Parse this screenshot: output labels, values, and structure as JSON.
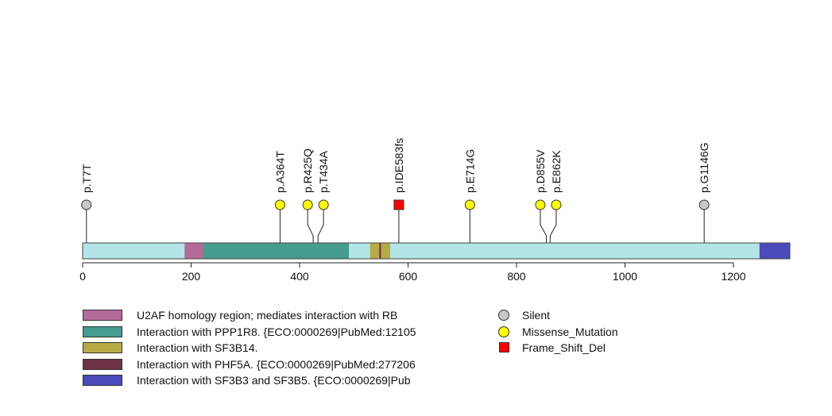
{
  "chart_data": {
    "type": "lollipop",
    "protein_length": 1304,
    "xlim": [
      0,
      1304
    ],
    "x_ticks": [
      0,
      200,
      400,
      600,
      800,
      1000,
      1200
    ],
    "backbone_color": "#b3e5e8",
    "domains": [
      {
        "name": "U2AF homology region; mediates interaction with RB",
        "start": 188,
        "end": 222,
        "color": "#b36b99"
      },
      {
        "name": "Interaction with PPP1R8. {ECO:0000269|PubMed:12105",
        "start": 222,
        "end": 491,
        "color": "#459c8f"
      },
      {
        "name": "Interaction with SF3B14.",
        "start": 530,
        "end": 567,
        "color": "#b8aa45"
      },
      {
        "name": "Interaction with PHF5A. {ECO:0000269|PubMed:277206",
        "start": 547,
        "end": 550,
        "color": "#6b3345"
      },
      {
        "name": "Interaction with SF3B3 and SF3B5. {ECO:0000269|Pub",
        "start": 1248,
        "end": 1304,
        "color": "#4a4abb"
      }
    ],
    "mutations": [
      {
        "label": "p.T7T",
        "position": 7,
        "type": "Silent"
      },
      {
        "label": "p.A364T",
        "position": 364,
        "type": "Missense_Mutation"
      },
      {
        "label": "p.R425Q",
        "position": 425,
        "type": "Missense_Mutation"
      },
      {
        "label": "p.T434A",
        "position": 434,
        "type": "Missense_Mutation"
      },
      {
        "label": "p.IDE583fs",
        "position": 583,
        "type": "Frame_Shift_Del"
      },
      {
        "label": "p.E714G",
        "position": 714,
        "type": "Missense_Mutation"
      },
      {
        "label": "p.D855V",
        "position": 855,
        "type": "Missense_Mutation"
      },
      {
        "label": "p.E862K",
        "position": 862,
        "type": "Missense_Mutation"
      },
      {
        "label": "p.G1146G",
        "position": 1146,
        "type": "Silent"
      }
    ],
    "mutation_types": [
      {
        "name": "Silent",
        "color": "#c8c8c8",
        "shape": "circle"
      },
      {
        "name": "Missense_Mutation",
        "color": "#ffff00",
        "shape": "circle"
      },
      {
        "name": "Frame_Shift_Del",
        "color": "#ff0000",
        "shape": "square"
      }
    ]
  }
}
